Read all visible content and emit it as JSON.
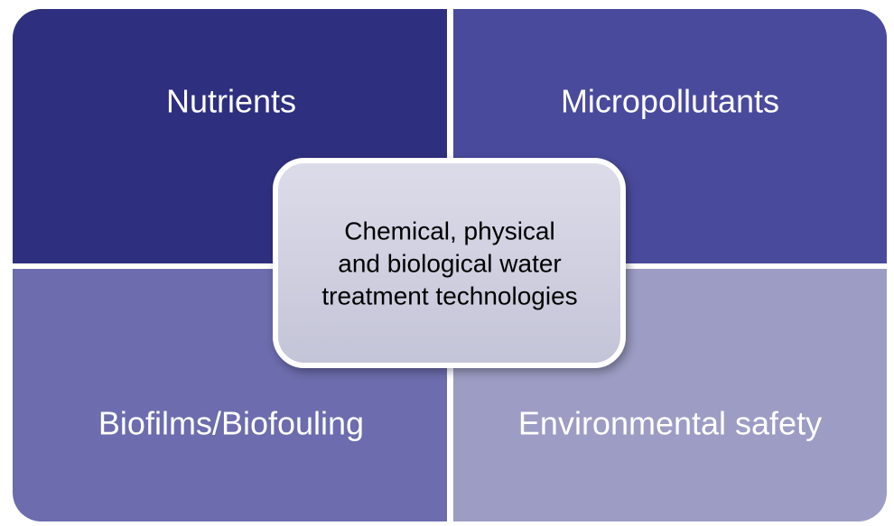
{
  "nodes": [
    {
      "label": "Nutrients"
    },
    {
      "label": "Micropollutants"
    },
    {
      "label": "Biofilms/Biofouling"
    },
    {
      "label": "Environmental safety"
    }
  ],
  "center": {
    "lines": [
      "Chemical, physical",
      "and biological water",
      "treatment technologies"
    ]
  }
}
